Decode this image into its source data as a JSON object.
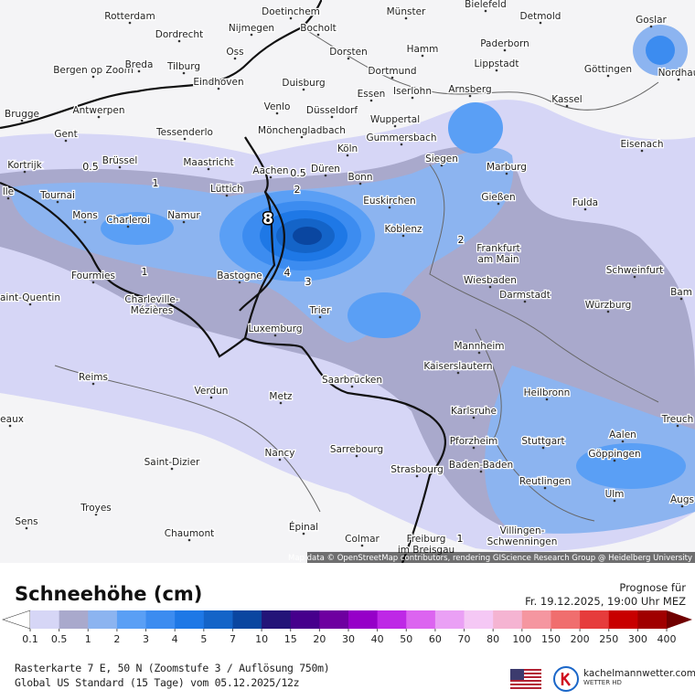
{
  "map": {
    "cities": [
      "Rotterdam",
      "Doetinchem",
      "Münster",
      "Bielefeld",
      "Detmold",
      "Goslar",
      "Dordrecht",
      "Nijmegen",
      "Bocholt",
      "Paderborn",
      "Oss",
      "Dorsten",
      "Hamm",
      "Bergen op Zoom",
      "Breda",
      "Tilburg",
      "Lippstadt",
      "Göttingen",
      "Nordhau",
      "Dortmund",
      "Duisburg",
      "Eindhoven",
      "Essen",
      "Iserlohn",
      "Arnsberg",
      "Kassel",
      "Brugge",
      "Antwerpen",
      "Venlo",
      "Düsseldorf",
      "Wuppertal",
      "Gent",
      "Tessenderlo",
      "Mönchengladbach",
      "Gummersbach",
      "Eisenach",
      "Köln",
      "Siegen",
      "Kortrijk",
      "Brüssel",
      "Maastricht",
      "Aachen",
      "Düren",
      "Marburg",
      "Bonn",
      "lle",
      "Tournai",
      "Lüttich",
      "Euskirchen",
      "Gießen",
      "Fulda",
      "Mons",
      "Charleroi",
      "Namur",
      "Koblenz",
      "Frankfurt am Main",
      "Schweinfurt",
      "Fourmies",
      "Bastogne",
      "Wiesbaden",
      "Darmstadt",
      "Bam",
      "aint-Quentin",
      "Charleville-Mézières",
      "Trier",
      "Würzburg",
      "Luxemburg",
      "Mannheim",
      "Kaiserslautern",
      "Reims",
      "Saarbrücken",
      "Verdun",
      "Metz",
      "Heilbronn",
      "Karlsruhe",
      "teaux",
      "Treuch",
      "Aalen",
      "Pforzheim",
      "Stuttgart",
      "Göppingen",
      "Nancy",
      "Sarrebourg",
      "Saint-Dizier",
      "Baden-Baden",
      "Strasbourg",
      "Reutlingen",
      "Ulm",
      "Augs",
      "Troyes",
      "Sens",
      "Épinal",
      "Chaumont",
      "Colmar",
      "Freiburg im Breisgau",
      "Villingen-Schwenningen"
    ],
    "contour_labels": [
      "0.5",
      "1",
      "0.5",
      "2",
      "8",
      "4",
      "3",
      "2",
      "1",
      "1"
    ],
    "attribution": "Map data © OpenStreetMap contributors, rendering GIScience Research Group @ Heidelberg University"
  },
  "legend": {
    "title": "Schneehöhe (cm)",
    "forecast_label": "Prognose für",
    "forecast_time": "Fr. 19.12.2025, 19:00 Uhr MEZ",
    "ticks": [
      0.1,
      0.5,
      1,
      2,
      3,
      4,
      5,
      7,
      10,
      15,
      20,
      30,
      40,
      50,
      60,
      70,
      80,
      100,
      150,
      200,
      250,
      300,
      400
    ],
    "colors": [
      "#d6d6f6",
      "#a9a9cc",
      "#8cb4f0",
      "#5a9ff5",
      "#3c8cf0",
      "#1e78e6",
      "#1464c8",
      "#0a46a0",
      "#231478",
      "#46008c",
      "#6e00a0",
      "#9600c8",
      "#be28e6",
      "#dc64f0",
      "#eaa0f5",
      "#f5c8f5",
      "#f5b4d2",
      "#f596a0",
      "#f06e6e",
      "#e63c3c",
      "#c80000",
      "#a00000"
    ],
    "under_color": "#ffffff",
    "over_color": "#700000"
  },
  "footer": {
    "line1": "Rasterkarte 7 E, 50 N (Zoomstufe 3 / Auflösung 750m)",
    "line2": "Global US Standard (15 Tage) vom  05.12.2025/12z",
    "logo_name": "kachelmannwetter.com",
    "logo_sub": "WETTER HD"
  }
}
